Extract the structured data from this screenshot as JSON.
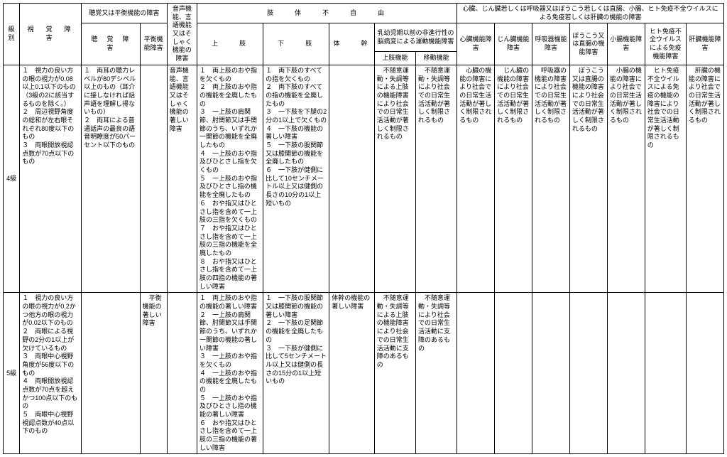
{
  "headers": {
    "grade": "級別",
    "visual": "視　覚　障　害",
    "hearing_balance": "聴覚又は平衡機能の障害",
    "hearing": "聴　覚　障　害",
    "balance": "平衡機能障害",
    "voice": "音声機能、言語機能又はそしゃく機能の障害",
    "limb_group": "肢　　体　　不　　自　　由",
    "upper": "上　　肢",
    "lower": "下　　肢",
    "trunk": "体　　幹",
    "brain_group": "乳幼児期以前の非進行性の脳病変による運動機能障害",
    "brain_upper": "上肢機能",
    "brain_move": "移動機能",
    "internal_group": "心臓、じん臓若しくは呼吸器又はぼうこう若しくは直腸、小腸、ヒト免疫不全ウイルスによる免疫若しくは肝臓の機能の障害",
    "heart": "心臓機能障害",
    "kidney": "じん臓機能障害",
    "resp": "呼吸器機能障害",
    "bladder": "ぼうこう又は直腸の機能障害",
    "small": "小腸機能障害",
    "hiv": "ヒト免疫不全ウイルスによる免疫機能障害",
    "liver": "肝臓機能障害"
  },
  "rows": {
    "g4": {
      "grade": "4級",
      "visual": "１　視力の良い方の眼の視力が0.08以上0.1以下のもの（3級の2に該当するものを除く。）\n２　周辺視野角度の総和が左右眼それぞれ80度以下のもの\n３　両眼開放視認点数が70点以下のもの",
      "hearing": "１　両耳の聴力レベルが80デシベル以上のもの（耳介に接しなければ話声語を理解し得ないもの）\n２　両耳による普通話声の最良の語音明瞭度が50パーセント以下のもの",
      "balance": "",
      "voice": "音声機能、言語機能又はそしゃく機能の著しい障害",
      "upper": "１　両上肢のおや指を欠くもの\n２　両上肢のおや指の機能を全廃したもの\n３　一上肢の肩関節、肘関節又は手関節のうち、いずれか一関節の機能を全廃したもの\n４　一上肢のおや指及びひとさし指を欠くもの\n５　一上肢のおや指及びひとさし指の機能を全廃したもの\n６　おや指又はひとさし指を含めて一上肢の三指を欠くもの\n７　おや指又はひとさし指を含めて一上肢の三指の機能を全廃したもの\n８　おや指又はひとさし指を含めて一上肢の四指の機能の著しい障害",
      "lower": "１　両下肢のすべての指を欠くもの\n２　両下肢のすべての指の機能を全廃したもの\n３　一下肢を下腿の2分の1以上で欠くもの\n４　一下肢の機能の著しい障害\n５　一下肢の股関節又は膝関節の機能を全廃したもの\n６　一下肢が健側に比して10センチメートル以上又は健側の長さの10分の1以上短いもの",
      "trunk": "",
      "brain_upper": "　不随意運動・失調等による上肢の機能障害により社会での日常生活活動が著しく制限されるもの",
      "brain_move": "　不随意運動・失調等により社会での日常生活活動が著しく制限されるもの",
      "heart": "　心臓の機能の障害により社会での日常生活活動が著しく制限されるもの",
      "kidney": "　じん臓の機能の障害により社会での日常生活活動が著しく制限されるもの",
      "resp": "　呼吸器の機能の障害により社会での日常生活活動が著しく制限されるもの",
      "bladder": "　ぼうこう又は直腸の機能の障害により社会での日常生活活動が著しく制限されるもの",
      "small": "　小腸の機能の障害により社会での日常生活活動が著しく制限されるもの",
      "hiv": "　ヒト免疫不全ウイルスによる免疫の機能の障害により社会での日常生活活動が著しく制限されるもの",
      "liver": "　肝臓の機能の障害により社会での日常生活活動が著しく制限されるもの"
    },
    "g5": {
      "grade": "5級",
      "visual": "１　視力の良い方の眼の視力が0.2かつ他方の眼の視力が0.02以下のもの\n２　両眼による視野の2分の1以上が欠けているもの\n３　両眼中心視野角度が56度以下のもの\n４　両眼開放視認点数が70点を超えかつ100点以下のもの\n５　両眼中心視野視認点数が40点以下のもの",
      "hearing": "",
      "balance": "　平衡機能の著しい障害",
      "voice": "",
      "upper": "１　両上肢のおや指の機能の著しい障害\n２　一上肢の肩関節、肘関節又は手関節のうち、いずれか一関節の機能の著しい障害\n３　一上肢のおや指を欠くもの\n４　一上肢のおや指の機能を全廃したもの\n５　一上肢のおや指及びひとさし指の機能の著しい障害\n６　おや指又はひとさし指を含めて一上肢の三指の機能の著しい障害",
      "lower": "１　一下肢の股関節又は膝関節の機能の著しい障害\n２　一下肢の足関節の機能を全廃したもの\n３　一下肢が健側に比して5センチメートル以上又は健側の長さの15分の1以上短いもの",
      "trunk": "体幹の機能の著しい障害",
      "brain_upper": "　不随意運動・失調等による上肢の機能障害により社会での日常生活活動に支障のあるもの",
      "brain_move": "　不随意運動・失調等により社会での日常生活活動に支障のあるもの",
      "heart": "",
      "kidney": "",
      "resp": "",
      "bladder": "",
      "small": "",
      "hiv": "",
      "liver": ""
    }
  }
}
